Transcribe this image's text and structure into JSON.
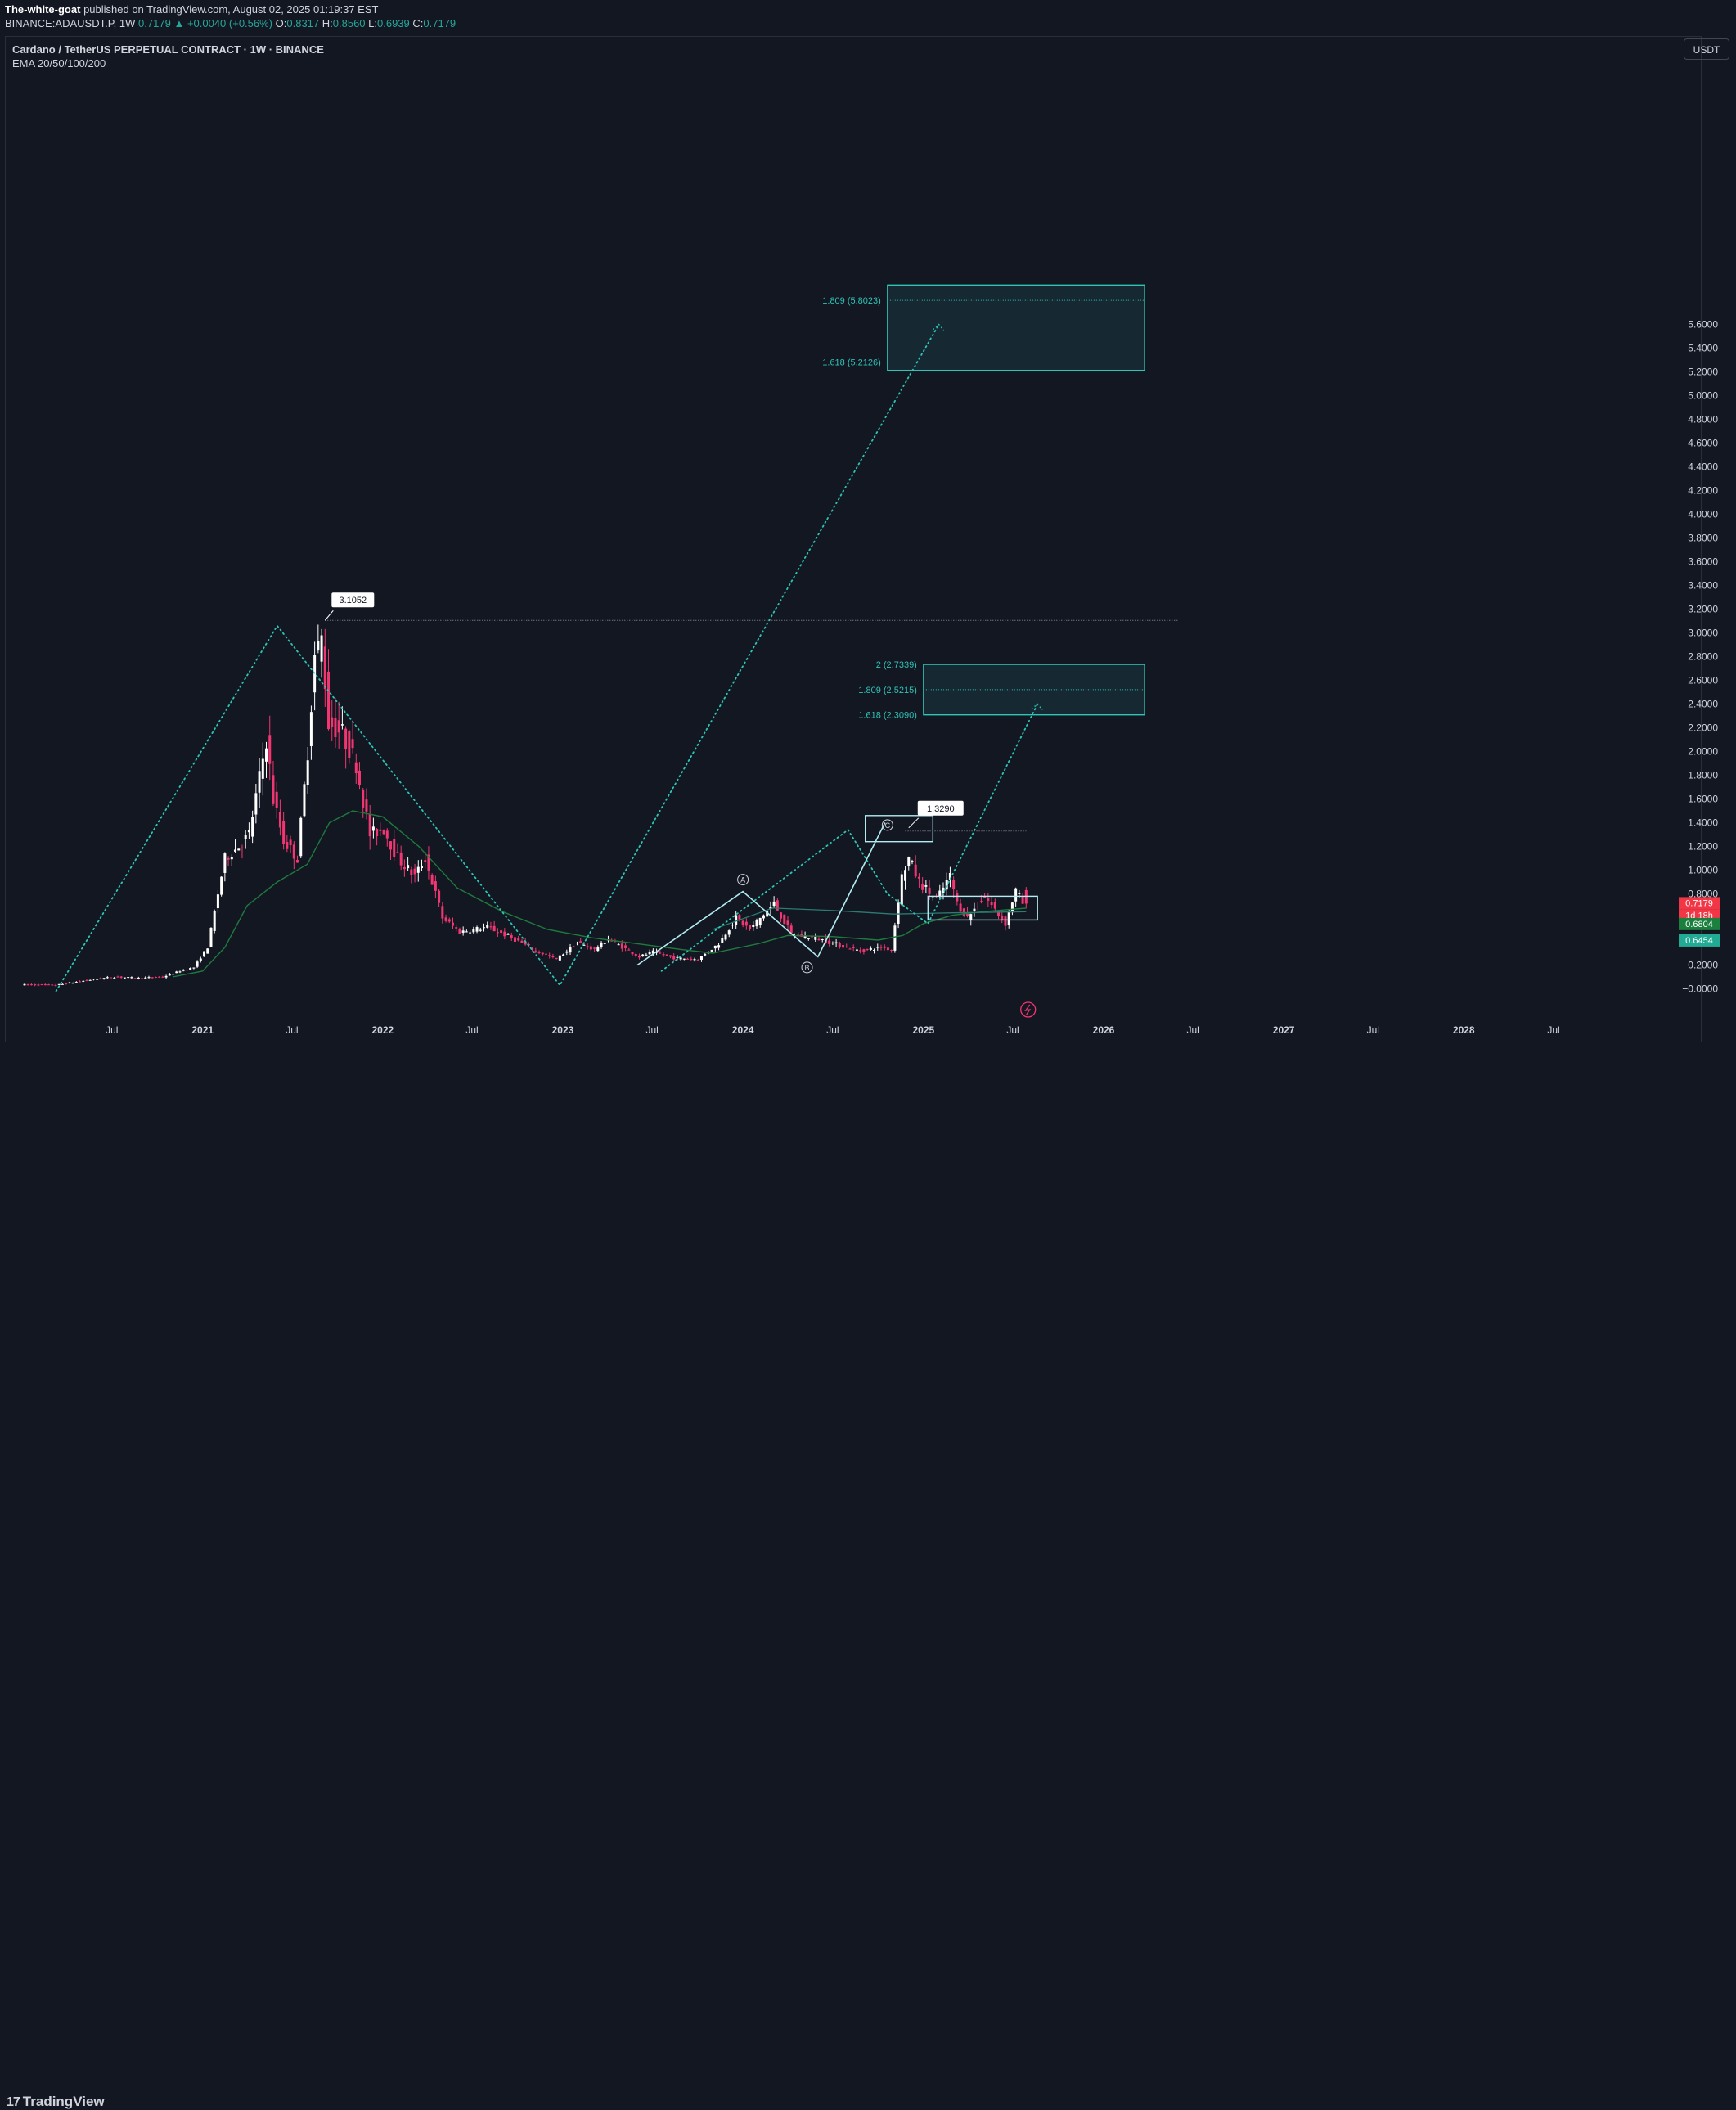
{
  "header": {
    "publisher": "The-white-goat",
    "publish_text": "published on TradingView.com, August 02, 2025 01:19:37 EST",
    "symbol": "BINANCE:ADAUSDT.P, 1W",
    "last": "0.7179",
    "change": "+0.0040 (+0.56%)",
    "open_label": "O:",
    "open": "0.8317",
    "high_label": "H:",
    "high": "0.8560",
    "low_label": "L:",
    "low": "0.6939",
    "close_label": "C:",
    "close": "0.7179"
  },
  "legend": {
    "title": "Cardano / TetherUS PERPETUAL CONTRACT · 1W · BINANCE",
    "indicator": "EMA 20/50/100/200"
  },
  "currency_button": "USDT",
  "footer": {
    "logo_mark": "17",
    "logo_text": "TradingView"
  },
  "colors": {
    "background": "#131722",
    "up": "#ffffff",
    "down": "#f23672",
    "ema": "#1f7a3e",
    "ema_long": "#2a7b71",
    "annotation": "#2ec4b6",
    "box_light": "#b2ebf2"
  },
  "chart_data": {
    "type": "candlestick",
    "title": "Cardano / TetherUS PERPETUAL CONTRACT · 1W · BINANCE",
    "xlabel": "",
    "ylabel": "",
    "y_axis": {
      "range": [
        -0.1,
        5.95
      ],
      "ticks": [
        "5.6000",
        "5.4000",
        "5.2000",
        "5.0000",
        "4.8000",
        "4.6000",
        "4.4000",
        "4.2000",
        "4.0000",
        "3.8000",
        "3.6000",
        "3.4000",
        "3.2000",
        "3.0000",
        "2.8000",
        "2.6000",
        "2.4000",
        "2.2000",
        "2.0000",
        "1.8000",
        "1.6000",
        "1.4000",
        "1.2000",
        "1.0000",
        "0.8000",
        "0.6000",
        "0.4000",
        "0.2000",
        "−0.0000"
      ]
    },
    "x_axis": {
      "range": [
        "2020-01-06",
        "2029-01-01"
      ],
      "ticks": [
        {
          "label": "Jul",
          "date": "2020-07-01"
        },
        {
          "label": "2021",
          "date": "2021-01-01"
        },
        {
          "label": "Jul",
          "date": "2021-07-01"
        },
        {
          "label": "2022",
          "date": "2022-01-01"
        },
        {
          "label": "Jul",
          "date": "2022-07-01"
        },
        {
          "label": "2023",
          "date": "2023-01-01"
        },
        {
          "label": "Jul",
          "date": "2023-07-01"
        },
        {
          "label": "2024",
          "date": "2024-01-01"
        },
        {
          "label": "Jul",
          "date": "2024-07-01"
        },
        {
          "label": "2025",
          "date": "2025-01-01"
        },
        {
          "label": "Jul",
          "date": "2025-07-01"
        },
        {
          "label": "2026",
          "date": "2026-01-01"
        },
        {
          "label": "Jul",
          "date": "2026-07-01"
        },
        {
          "label": "2027",
          "date": "2027-01-01"
        },
        {
          "label": "Jul",
          "date": "2027-07-01"
        },
        {
          "label": "2028",
          "date": "2028-01-01"
        },
        {
          "label": "Jul",
          "date": "2028-07-01"
        }
      ]
    },
    "price_path": [
      [
        "2020-01-06",
        0.035
      ],
      [
        "2020-03-16",
        0.03
      ],
      [
        "2020-06-01",
        0.08
      ],
      [
        "2020-07-13",
        0.1
      ],
      [
        "2020-09-01",
        0.09
      ],
      [
        "2020-10-19",
        0.1
      ],
      [
        "2020-11-23",
        0.15
      ],
      [
        "2020-12-21",
        0.18
      ],
      [
        "2021-01-18",
        0.35
      ],
      [
        "2021-02-22",
        1.1
      ],
      [
        "2021-03-22",
        1.2
      ],
      [
        "2021-04-12",
        1.3
      ],
      [
        "2021-05-17",
        2.1
      ],
      [
        "2021-05-31",
        1.6
      ],
      [
        "2021-06-21",
        1.25
      ],
      [
        "2021-07-19",
        1.1
      ],
      [
        "2021-08-09",
        2.0
      ],
      [
        "2021-08-23",
        2.8
      ],
      [
        "2021-09-06",
        2.95
      ],
      [
        "2021-09-20",
        2.25
      ],
      [
        "2021-10-18",
        2.15
      ],
      [
        "2021-11-15",
        1.9
      ],
      [
        "2021-12-13",
        1.3
      ],
      [
        "2022-01-10",
        1.35
      ],
      [
        "2022-02-07",
        1.1
      ],
      [
        "2022-03-14",
        0.95
      ],
      [
        "2022-04-04",
        1.1
      ],
      [
        "2022-05-09",
        0.6
      ],
      [
        "2022-06-13",
        0.48
      ],
      [
        "2022-08-08",
        0.52
      ],
      [
        "2022-09-05",
        0.47
      ],
      [
        "2022-10-10",
        0.4
      ],
      [
        "2022-11-14",
        0.32
      ],
      [
        "2022-12-26",
        0.25
      ],
      [
        "2023-02-06",
        0.39
      ],
      [
        "2023-03-13",
        0.33
      ],
      [
        "2023-04-10",
        0.42
      ],
      [
        "2023-06-12",
        0.27
      ],
      [
        "2023-07-10",
        0.31
      ],
      [
        "2023-08-21",
        0.26
      ],
      [
        "2023-10-09",
        0.25
      ],
      [
        "2023-11-20",
        0.38
      ],
      [
        "2023-12-25",
        0.6
      ],
      [
        "2024-01-22",
        0.5
      ],
      [
        "2024-03-11",
        0.72
      ],
      [
        "2024-04-15",
        0.46
      ],
      [
        "2024-06-10",
        0.42
      ],
      [
        "2024-08-05",
        0.35
      ],
      [
        "2024-09-02",
        0.32
      ],
      [
        "2024-10-14",
        0.35
      ],
      [
        "2024-11-04",
        0.33
      ],
      [
        "2024-11-25",
        0.95
      ],
      [
        "2024-12-09",
        1.1
      ],
      [
        "2024-12-30",
        0.9
      ],
      [
        "2025-02-03",
        0.75
      ],
      [
        "2025-03-03",
        0.95
      ],
      [
        "2025-03-17",
        0.72
      ],
      [
        "2025-04-07",
        0.6
      ],
      [
        "2025-05-12",
        0.78
      ],
      [
        "2025-06-23",
        0.55
      ],
      [
        "2025-07-14",
        0.83
      ],
      [
        "2025-07-28",
        0.7179
      ]
    ],
    "ema_short": [
      [
        "2020-11-01",
        0.1
      ],
      [
        "2021-01-01",
        0.15
      ],
      [
        "2021-02-15",
        0.35
      ],
      [
        "2021-04-01",
        0.7
      ],
      [
        "2021-06-01",
        0.9
      ],
      [
        "2021-08-01",
        1.05
      ],
      [
        "2021-09-15",
        1.4
      ],
      [
        "2021-11-01",
        1.5
      ],
      [
        "2022-01-01",
        1.45
      ],
      [
        "2022-03-15",
        1.2
      ],
      [
        "2022-06-01",
        0.85
      ],
      [
        "2022-09-01",
        0.65
      ],
      [
        "2022-12-01",
        0.5
      ],
      [
        "2023-03-01",
        0.43
      ],
      [
        "2023-06-01",
        0.38
      ],
      [
        "2023-09-01",
        0.33
      ],
      [
        "2023-11-01",
        0.3
      ],
      [
        "2024-02-01",
        0.38
      ],
      [
        "2024-04-01",
        0.45
      ],
      [
        "2024-07-01",
        0.44
      ],
      [
        "2024-10-01",
        0.41
      ],
      [
        "2024-11-20",
        0.45
      ],
      [
        "2025-01-01",
        0.55
      ],
      [
        "2025-03-01",
        0.62
      ],
      [
        "2025-05-01",
        0.65
      ],
      [
        "2025-07-28",
        0.68
      ]
    ],
    "ema_long": [
      [
        "2023-11-01",
        0.5
      ],
      [
        "2024-03-01",
        0.68
      ],
      [
        "2024-07-01",
        0.66
      ],
      [
        "2024-11-01",
        0.63
      ],
      [
        "2025-03-01",
        0.64
      ],
      [
        "2025-07-28",
        0.65
      ]
    ],
    "price_labels": {
      "last": "0.7179",
      "countdown": "1d 18h",
      "ema_value": "0.6804",
      "ema_long_value": "0.6454"
    },
    "annotations": {
      "ath_label": "3.1052",
      "ath_value": 3.1052,
      "high_label": "1.3290",
      "high_value": 1.329,
      "wave_A": "A",
      "wave_B": "B",
      "wave_C": "C",
      "target_upper": {
        "top_label": "1.809 (5.8023)",
        "bottom_label": "1.618 (5.2126)",
        "top": 5.8023,
        "bottom": 5.2126
      },
      "target_lower": {
        "top_label": "2 (2.7339)",
        "mid_label": "1.809 (2.5215)",
        "bottom_label": "1.618 (2.3090)",
        "top": 2.7339,
        "mid": 2.5215,
        "bottom": 2.309
      }
    },
    "grid": false,
    "legend_position": "top-left"
  }
}
